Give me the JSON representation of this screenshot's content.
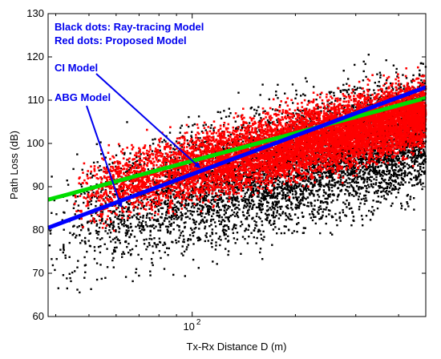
{
  "chart_data": {
    "type": "scatter",
    "xlabel": "Tx-Rx Distance D (m)",
    "ylabel": "Path Loss (dB)",
    "x_scale": "log",
    "xlim": [
      38,
      480
    ],
    "ylim": [
      60,
      130
    ],
    "y_ticks": [
      60,
      70,
      80,
      90,
      100,
      110,
      120,
      130
    ],
    "x_tick_labels": [
      {
        "value": 100,
        "label": "10",
        "exponent": "2"
      }
    ],
    "grid": false,
    "legend_text": [
      "Black dots: Ray-tracing Model",
      "Red dots: Proposed Model"
    ],
    "annotations": [
      {
        "text": "CI Model",
        "arrow_to": [
          105,
          94.5
        ]
      },
      {
        "text": "ABG Model",
        "arrow_to": [
          62,
          85.5
        ]
      }
    ],
    "series": [
      {
        "kind": "scatter",
        "color": "#000000",
        "x_range": [
          38,
          480
        ],
        "y_center_at_xmin": 80,
        "y_center_at_xmax": 103,
        "y_spread": 18
      },
      {
        "kind": "scatter",
        "color": "#ff0000",
        "x_range": [
          45,
          480
        ],
        "y_center_at_xmin": 88,
        "y_center_at_xmax": 107,
        "y_spread": 10
      },
      {
        "kind": "line",
        "name": "CI Model",
        "color": "#0000ff",
        "x": [
          38,
          480
        ],
        "y": [
          80.5,
          113
        ]
      },
      {
        "kind": "line",
        "name": "ABG Model",
        "color": "#00dd00",
        "x": [
          38,
          480
        ],
        "y": [
          87,
          110.5
        ]
      }
    ]
  }
}
